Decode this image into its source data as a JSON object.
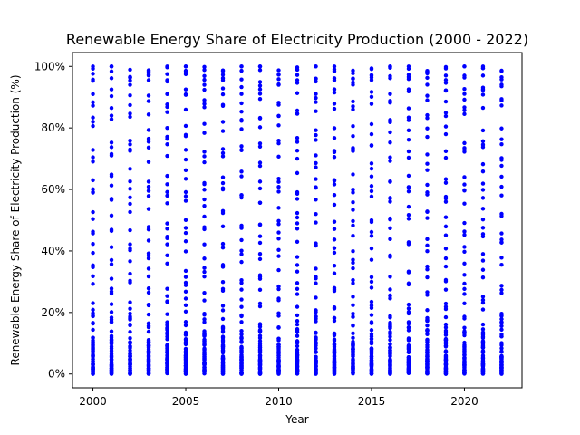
{
  "chart_data": {
    "type": "scatter",
    "title": "Renewable Energy Share of Electricity Production (2000 - 2022)",
    "xlabel": "Year",
    "ylabel": "Renewable Energy Share of Electricity Production (%)",
    "xlim": [
      1998.9,
      2023.1
    ],
    "ylim": [
      -4.5,
      104.5
    ],
    "xticks": [
      2000,
      2005,
      2010,
      2015,
      2020
    ],
    "xtick_labels": [
      "2000",
      "2005",
      "2010",
      "2015",
      "2020"
    ],
    "yticks": [
      0,
      20,
      40,
      60,
      80,
      100
    ],
    "ytick_labels": [
      "0%",
      "20%",
      "40%",
      "60%",
      "80%",
      "100%"
    ],
    "grid": false,
    "legend": "none",
    "marker_color": "#0000ff",
    "years": [
      2000,
      2001,
      2002,
      2003,
      2004,
      2005,
      2006,
      2007,
      2008,
      2009,
      2010,
      2011,
      2012,
      2013,
      2014,
      2015,
      2016,
      2017,
      2018,
      2019,
      2020,
      2021,
      2022
    ],
    "series": [
      {
        "x": 2000,
        "y": [
          0,
          0.5,
          1,
          1.5,
          2,
          2.5,
          3,
          3.5,
          4,
          5,
          6,
          7,
          8,
          9,
          10,
          12,
          14,
          16,
          18,
          20,
          22,
          25,
          28,
          30,
          33,
          36,
          40,
          42,
          45,
          48,
          50,
          55,
          58,
          60,
          62,
          65,
          70,
          72,
          75,
          78,
          82,
          85,
          88,
          90,
          93,
          95,
          97,
          98,
          99,
          100
        ]
      }
    ]
  }
}
